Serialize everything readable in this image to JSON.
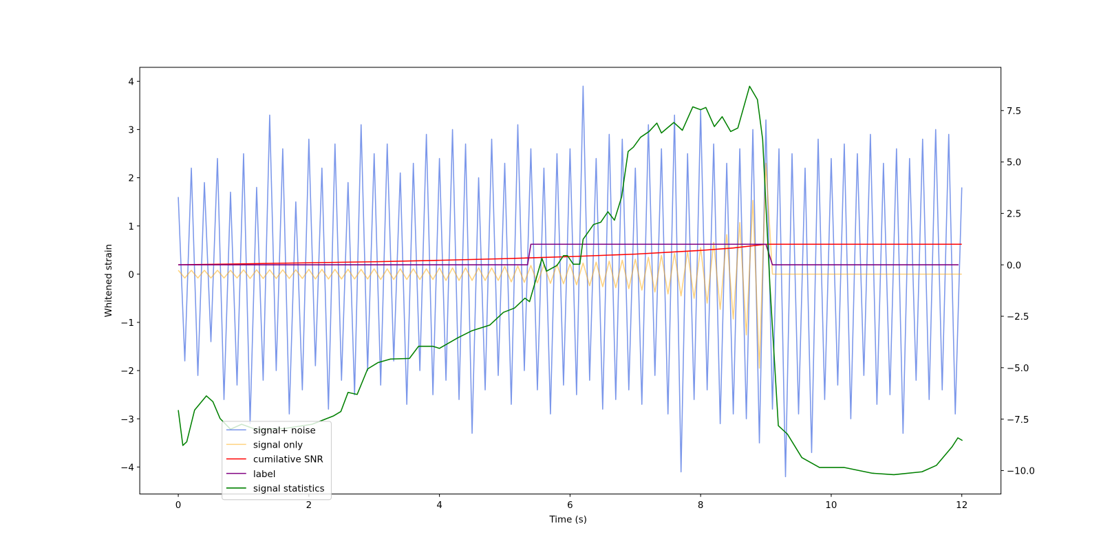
{
  "chart_data": {
    "type": "line",
    "xlabel": "Time (s)",
    "ylabel": "Whitened strain",
    "xlim": [
      -0.59,
      12.6
    ],
    "xticks": [
      0,
      2,
      4,
      6,
      8,
      10,
      12
    ],
    "ylim": [
      -4.56,
      4.29
    ],
    "yticks": [
      {
        "value": -4,
        "label": "−4"
      },
      {
        "value": -3,
        "label": "−3"
      },
      {
        "value": -2,
        "label": "−2"
      },
      {
        "value": -1,
        "label": "−1"
      },
      0,
      1,
      2,
      3,
      4
    ],
    "y2lim": [
      -11.14,
      9.6
    ],
    "y2ticks": [
      {
        "value": -10,
        "label": "−10.0"
      },
      {
        "value": -7.5,
        "label": "−7.5"
      },
      {
        "value": -5,
        "label": "−5.0"
      },
      {
        "value": -2.5,
        "label": "−2.5"
      },
      {
        "value": 0,
        "label": "0.0"
      },
      2.5,
      {
        "value": 5,
        "label": "5.0"
      },
      7.5
    ],
    "legend": "lower left",
    "x": [
      0,
      0.1,
      0.2,
      0.3,
      0.4,
      0.5,
      0.6,
      0.7,
      0.8,
      0.9,
      1,
      1.1,
      1.2,
      1.3,
      1.4,
      1.5,
      1.6,
      1.7,
      1.8,
      1.9,
      2,
      2.1,
      2.2,
      2.3,
      2.4,
      2.5,
      2.6,
      2.7,
      2.8,
      2.9,
      3,
      3.1,
      3.2,
      3.3,
      3.4,
      3.5,
      3.6,
      3.7,
      3.8,
      3.9,
      4,
      4.1,
      4.2,
      4.3,
      4.4,
      4.5,
      4.6,
      4.7,
      4.8,
      4.9,
      5,
      5.1,
      5.2,
      5.3,
      5.4,
      5.5,
      5.6,
      5.7,
      5.8,
      5.9,
      6,
      6.1,
      6.2,
      6.3,
      6.4,
      6.5,
      6.6,
      6.7,
      6.8,
      6.9,
      7,
      7.1,
      7.2,
      7.3,
      7.4,
      7.5,
      7.6,
      7.7,
      7.8,
      7.9,
      8,
      8.1,
      8.2,
      8.3,
      8.4,
      8.5,
      8.6,
      8.7,
      8.8,
      8.9,
      9,
      9.1,
      9.2,
      9.3,
      9.4,
      9.5,
      9.6,
      9.7,
      9.8,
      9.9,
      10,
      10.1,
      10.2,
      10.3,
      10.4,
      10.5,
      10.6,
      10.7,
      10.8,
      10.9,
      11,
      11.1,
      11.2,
      11.3,
      11.4,
      11.5,
      11.6,
      11.7,
      11.8,
      11.9,
      12
    ],
    "series": [
      {
        "name": "signal+ noise",
        "color": "rgba(65,105,225,0.7)",
        "values": [
          1.6,
          -1.8,
          2.2,
          -2.1,
          1.9,
          -1.4,
          2.4,
          -2.6,
          1.7,
          -2.3,
          2.5,
          -3.1,
          1.8,
          -2.2,
          3.3,
          -2.0,
          2.6,
          -2.9,
          1.5,
          -2.4,
          2.8,
          -1.9,
          2.2,
          -2.8,
          2.7,
          -2.2,
          1.9,
          -2.5,
          3.1,
          -2.0,
          2.5,
          -2.3,
          2.7,
          -1.8,
          2.1,
          -2.7,
          2.3,
          -2.0,
          2.9,
          -2.5,
          2.4,
          -2.2,
          3.0,
          -2.6,
          2.7,
          -3.3,
          2.0,
          -2.4,
          2.8,
          -2.1,
          2.3,
          -2.7,
          3.1,
          -2.0,
          2.6,
          -2.4,
          2.2,
          -2.9,
          2.5,
          -2.3,
          2.6,
          -2.5,
          3.9,
          -2.2,
          2.4,
          -2.8,
          2.9,
          -2.6,
          2.8,
          -2.4,
          2.2,
          -2.7,
          3.1,
          -2.1,
          2.6,
          -2.9,
          3.3,
          -4.1,
          2.5,
          -2.6,
          3.4,
          -2.4,
          2.7,
          -3.1,
          2.3,
          -2.9,
          2.6,
          -3.0,
          3.0,
          -3.5,
          3.2,
          -2.8,
          2.6,
          -4.2,
          2.5,
          -2.9,
          2.2,
          -3.7,
          2.8,
          -2.6,
          2.4,
          -2.3,
          2.7,
          -3.0,
          2.5,
          -2.1,
          2.9,
          -2.7,
          2.3,
          -2.5,
          2.6,
          -3.3,
          2.4,
          -2.2,
          2.8,
          -2.6,
          3.0,
          -2.4,
          2.9,
          -2.9,
          1.8
        ]
      },
      {
        "name": "signal only",
        "color": "rgba(255,165,0,0.5)",
        "values": [
          0.08,
          -0.08,
          0.08,
          -0.08,
          0.08,
          -0.08,
          0.08,
          -0.08,
          0.08,
          -0.08,
          0.09,
          -0.09,
          0.09,
          -0.09,
          0.09,
          -0.09,
          0.09,
          -0.09,
          0.09,
          -0.09,
          0.1,
          -0.1,
          0.1,
          -0.1,
          0.1,
          -0.1,
          0.1,
          -0.1,
          0.1,
          -0.1,
          0.11,
          -0.11,
          0.11,
          -0.11,
          0.11,
          -0.11,
          0.11,
          -0.11,
          0.11,
          -0.11,
          0.13,
          -0.13,
          0.13,
          -0.13,
          0.13,
          -0.13,
          0.13,
          -0.13,
          0.13,
          -0.13,
          0.16,
          -0.16,
          0.17,
          -0.17,
          0.18,
          -0.18,
          0.19,
          -0.19,
          0.2,
          -0.2,
          0.21,
          -0.22,
          0.23,
          -0.24,
          0.25,
          -0.26,
          0.27,
          -0.28,
          0.29,
          -0.3,
          0.31,
          -0.33,
          0.35,
          -0.37,
          0.39,
          -0.41,
          0.43,
          -0.45,
          0.47,
          -0.5,
          0.55,
          -0.6,
          0.66,
          -0.73,
          0.82,
          -0.93,
          1.07,
          -1.26,
          1.53,
          -1.95,
          2.3,
          0,
          0,
          0,
          0,
          0,
          0,
          0,
          0,
          0,
          0,
          0,
          0,
          0,
          0,
          0,
          0,
          0,
          0,
          0,
          0,
          0,
          0,
          0,
          0,
          0,
          0,
          0,
          0,
          0,
          0
        ]
      },
      {
        "name": "cumilative SNR",
        "color": "#ff0000",
        "axis": "y2",
        "x": [
          0,
          1,
          2,
          3,
          4,
          5,
          6,
          7,
          8,
          8.5,
          9,
          9.05,
          12
        ],
        "values": [
          0,
          0.05,
          0.1,
          0.15,
          0.22,
          0.3,
          0.4,
          0.52,
          0.7,
          0.82,
          1,
          1,
          1
        ]
      },
      {
        "name": "label",
        "color": "#800080",
        "axis": "y2",
        "x": [
          0,
          5.35,
          5.4,
          9,
          9.1,
          11.95
        ],
        "values": [
          0,
          0,
          1,
          1,
          0,
          0
        ]
      },
      {
        "name": "signal statistics",
        "color": "#008000",
        "axis": "y2",
        "x": [
          0,
          0.07,
          0.13,
          0.25,
          0.43,
          0.53,
          0.64,
          0.8,
          0.97,
          1.18,
          1.62,
          2.05,
          2.38,
          2.49,
          2.6,
          2.74,
          2.9,
          3.06,
          3.25,
          3.54,
          3.68,
          3.9,
          4,
          4.28,
          4.5,
          4.77,
          4.98,
          5.15,
          5.31,
          5.38,
          5.57,
          5.64,
          5.8,
          5.9,
          5.96,
          6.05,
          6.15,
          6.2,
          6.36,
          6.47,
          6.58,
          6.68,
          6.79,
          6.89,
          6.97,
          7.08,
          7.21,
          7.33,
          7.4,
          7.59,
          7.72,
          7.88,
          8,
          8.08,
          8.21,
          8.33,
          8.46,
          8.57,
          8.75,
          8.87,
          8.95,
          9.06,
          9.19,
          9.33,
          9.55,
          9.82,
          10.2,
          10.63,
          10.96,
          11.39,
          11.61,
          11.85,
          11.94,
          12.01
        ],
        "values": [
          -7.06,
          -8.78,
          -8.6,
          -7.06,
          -6.37,
          -6.65,
          -7.47,
          -7.99,
          -7.75,
          -7.99,
          -7.96,
          -7.75,
          -7.34,
          -7.13,
          -6.2,
          -6.3,
          -5.06,
          -4.75,
          -4.58,
          -4.55,
          -3.96,
          -3.96,
          -4.06,
          -3.55,
          -3.2,
          -2.93,
          -2.31,
          -2.1,
          -1.62,
          -1.79,
          0.31,
          -0.31,
          -0.03,
          0.45,
          0.45,
          0.03,
          0.03,
          1.24,
          1.96,
          2.07,
          2.58,
          2.17,
          3.3,
          5.51,
          5.72,
          6.2,
          6.48,
          6.89,
          6.41,
          6.92,
          6.54,
          7.68,
          7.54,
          7.65,
          6.72,
          7.2,
          6.48,
          6.65,
          8.68,
          8.03,
          6.1,
          -0.93,
          -7.82,
          -8.23,
          -9.37,
          -9.85,
          -9.85,
          -10.13,
          -10.2,
          -10.06,
          -9.75,
          -8.85,
          -8.41,
          -8.54
        ]
      }
    ]
  }
}
